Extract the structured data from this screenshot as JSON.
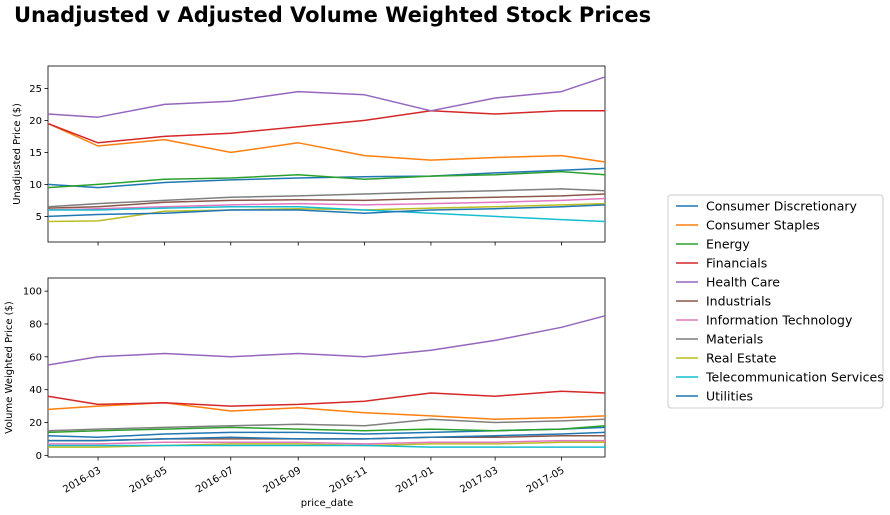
{
  "figure": {
    "suptitle": "Unadjusted v Adjusted Volume Weighted Stock Prices",
    "xlabel": "price_date"
  },
  "chart_data": [
    {
      "type": "line",
      "ylabel": "Unadjusted Price ($)",
      "xlim": [
        "2016-01-15",
        "2017-06-10"
      ],
      "ylim": [
        1,
        28.5
      ],
      "yticks": [
        5,
        10,
        15,
        20,
        25
      ],
      "x_tick_labels": [],
      "grid": false,
      "series": [
        {
          "name": "Consumer Discretionary",
          "color": "#1f77b4",
          "x": [
            "2016-01-15",
            "2016-03-01",
            "2016-05-01",
            "2016-07-01",
            "2016-09-01",
            "2016-11-01",
            "2017-01-01",
            "2017-03-01",
            "2017-05-01",
            "2017-06-10"
          ],
          "values": [
            10.0,
            9.5,
            10.3,
            10.7,
            11.0,
            11.2,
            11.3,
            11.8,
            12.2,
            12.5
          ]
        },
        {
          "name": "Consumer Staples",
          "color": "#ff7f0e",
          "x": [
            "2016-01-15",
            "2016-03-01",
            "2016-05-01",
            "2016-07-01",
            "2016-09-01",
            "2016-11-01",
            "2017-01-01",
            "2017-03-01",
            "2017-05-01",
            "2017-06-10"
          ],
          "values": [
            19.5,
            16.0,
            17.0,
            15.0,
            16.5,
            14.5,
            13.8,
            14.2,
            14.5,
            13.5
          ]
        },
        {
          "name": "Energy",
          "color": "#2ca02c",
          "x": [
            "2016-01-15",
            "2016-03-01",
            "2016-05-01",
            "2016-07-01",
            "2016-09-01",
            "2016-11-01",
            "2017-01-01",
            "2017-03-01",
            "2017-05-01",
            "2017-06-10"
          ],
          "values": [
            9.5,
            10.0,
            10.8,
            11.0,
            11.5,
            10.8,
            11.3,
            11.5,
            12.0,
            11.5
          ]
        },
        {
          "name": "Financials",
          "color": "#d62728",
          "x": [
            "2016-01-15",
            "2016-03-01",
            "2016-05-01",
            "2016-07-01",
            "2016-09-01",
            "2016-11-01",
            "2017-01-01",
            "2017-03-01",
            "2017-05-01",
            "2017-06-10"
          ],
          "values": [
            19.5,
            16.5,
            17.5,
            18.0,
            19.0,
            20.0,
            21.5,
            21.0,
            21.5,
            21.5
          ]
        },
        {
          "name": "Health Care",
          "color": "#9467bd",
          "x": [
            "2016-01-15",
            "2016-03-01",
            "2016-05-01",
            "2016-07-01",
            "2016-09-01",
            "2016-11-01",
            "2017-01-01",
            "2017-03-01",
            "2017-05-01",
            "2017-06-10"
          ],
          "values": [
            21.0,
            20.5,
            22.5,
            23.0,
            24.5,
            24.0,
            21.5,
            23.5,
            24.5,
            26.8
          ]
        },
        {
          "name": "Industrials",
          "color": "#8c564b",
          "x": [
            "2016-01-15",
            "2016-03-01",
            "2016-05-01",
            "2016-07-01",
            "2016-09-01",
            "2016-11-01",
            "2017-01-01",
            "2017-03-01",
            "2017-05-01",
            "2017-06-10"
          ],
          "values": [
            6.3,
            6.5,
            7.2,
            7.5,
            7.6,
            7.5,
            7.8,
            8.0,
            8.2,
            8.5
          ]
        },
        {
          "name": "Information Technology",
          "color": "#e377c2",
          "x": [
            "2016-01-15",
            "2016-03-01",
            "2016-05-01",
            "2016-07-01",
            "2016-09-01",
            "2016-11-01",
            "2017-01-01",
            "2017-03-01",
            "2017-05-01",
            "2017-06-10"
          ],
          "values": [
            6.0,
            6.2,
            6.5,
            6.8,
            7.0,
            6.8,
            7.0,
            7.2,
            7.5,
            7.8
          ]
        },
        {
          "name": "Materials",
          "color": "#7f7f7f",
          "x": [
            "2016-01-15",
            "2016-03-01",
            "2016-05-01",
            "2016-07-01",
            "2016-09-01",
            "2016-11-01",
            "2017-01-01",
            "2017-03-01",
            "2017-05-01",
            "2017-06-10"
          ],
          "values": [
            6.5,
            7.0,
            7.5,
            8.0,
            8.2,
            8.5,
            8.8,
            9.0,
            9.3,
            9.0
          ]
        },
        {
          "name": "Real Estate",
          "color": "#bcbd22",
          "x": [
            "2016-01-15",
            "2016-03-01",
            "2016-05-01",
            "2016-07-01",
            "2016-09-01",
            "2016-11-01",
            "2017-01-01",
            "2017-03-01",
            "2017-05-01",
            "2017-06-10"
          ],
          "values": [
            4.2,
            4.3,
            5.8,
            6.0,
            6.2,
            6.0,
            6.3,
            6.5,
            6.8,
            7.0
          ]
        },
        {
          "name": "Telecommunication Services",
          "color": "#17becf",
          "x": [
            "2016-01-15",
            "2016-03-01",
            "2016-05-01",
            "2016-07-01",
            "2016-09-01",
            "2016-11-01",
            "2017-01-01",
            "2017-03-01",
            "2017-05-01",
            "2017-06-10"
          ],
          "values": [
            6.0,
            6.0,
            6.3,
            6.5,
            6.5,
            6.0,
            5.5,
            5.0,
            4.5,
            4.2
          ]
        },
        {
          "name": "Utilities",
          "color": "#1f77b4",
          "x": [
            "2016-01-15",
            "2016-03-01",
            "2016-05-01",
            "2016-07-01",
            "2016-09-01",
            "2016-11-01",
            "2017-01-01",
            "2017-03-01",
            "2017-05-01",
            "2017-06-10"
          ],
          "values": [
            5.0,
            5.3,
            5.5,
            6.0,
            6.0,
            5.5,
            6.0,
            6.2,
            6.5,
            6.8
          ]
        }
      ]
    },
    {
      "type": "line",
      "ylabel": "Volume Weighted Price ($)",
      "xlim": [
        "2016-01-15",
        "2017-06-10"
      ],
      "ylim": [
        -1,
        108
      ],
      "yticks": [
        0,
        20,
        40,
        60,
        80,
        100
      ],
      "x_tick_labels": [
        {
          "x": "2016-03-01",
          "label": "2016-03"
        },
        {
          "x": "2016-05-01",
          "label": "2016-05"
        },
        {
          "x": "2016-07-01",
          "label": "2016-07"
        },
        {
          "x": "2016-09-01",
          "label": "2016-09"
        },
        {
          "x": "2016-11-01",
          "label": "2016-11"
        },
        {
          "x": "2017-01-01",
          "label": "2017-01"
        },
        {
          "x": "2017-03-01",
          "label": "2017-03"
        },
        {
          "x": "2017-05-01",
          "label": "2017-05"
        }
      ],
      "grid": false,
      "series": [
        {
          "name": "Consumer Discretionary",
          "color": "#1f77b4",
          "x": [
            "2016-01-15",
            "2016-03-01",
            "2016-05-01",
            "2016-07-01",
            "2016-09-01",
            "2016-11-01",
            "2017-01-01",
            "2017-03-01",
            "2017-05-01",
            "2017-06-10"
          ],
          "values": [
            12,
            11,
            13,
            14,
            14,
            13,
            14,
            15,
            16,
            17
          ]
        },
        {
          "name": "Consumer Staples",
          "color": "#ff7f0e",
          "x": [
            "2016-01-15",
            "2016-03-01",
            "2016-05-01",
            "2016-07-01",
            "2016-09-01",
            "2016-11-01",
            "2017-01-01",
            "2017-03-01",
            "2017-05-01",
            "2017-06-10"
          ],
          "values": [
            28,
            30,
            32,
            27,
            29,
            26,
            24,
            22,
            23,
            24
          ]
        },
        {
          "name": "Energy",
          "color": "#2ca02c",
          "x": [
            "2016-01-15",
            "2016-03-01",
            "2016-05-01",
            "2016-07-01",
            "2016-09-01",
            "2016-11-01",
            "2017-01-01",
            "2017-03-01",
            "2017-05-01",
            "2017-06-10"
          ],
          "values": [
            14,
            15,
            16,
            17,
            16,
            15,
            16,
            15,
            16,
            18
          ]
        },
        {
          "name": "Financials",
          "color": "#d62728",
          "x": [
            "2016-01-15",
            "2016-03-01",
            "2016-05-01",
            "2016-07-01",
            "2016-09-01",
            "2016-11-01",
            "2017-01-01",
            "2017-03-01",
            "2017-05-01",
            "2017-06-10"
          ],
          "values": [
            36,
            31,
            32,
            30,
            31,
            33,
            38,
            36,
            39,
            38
          ]
        },
        {
          "name": "Health Care",
          "color": "#9467bd",
          "x": [
            "2016-01-15",
            "2016-03-01",
            "2016-05-01",
            "2016-07-01",
            "2016-09-01",
            "2016-11-01",
            "2017-01-01",
            "2017-03-01",
            "2017-05-01",
            "2017-06-10"
          ],
          "values": [
            55,
            60,
            62,
            60,
            62,
            60,
            64,
            70,
            78,
            85
          ]
        },
        {
          "name": "Industrials",
          "color": "#8c564b",
          "x": [
            "2016-01-15",
            "2016-03-01",
            "2016-05-01",
            "2016-07-01",
            "2016-09-01",
            "2016-11-01",
            "2017-01-01",
            "2017-03-01",
            "2017-05-01",
            "2017-06-10"
          ],
          "values": [
            9,
            9,
            10,
            10,
            10,
            10,
            11,
            11,
            12,
            12
          ]
        },
        {
          "name": "Information Technology",
          "color": "#e377c2",
          "x": [
            "2016-01-15",
            "2016-03-01",
            "2016-05-01",
            "2016-07-01",
            "2016-09-01",
            "2016-11-01",
            "2017-01-01",
            "2017-03-01",
            "2017-05-01",
            "2017-06-10"
          ],
          "values": [
            7,
            7,
            8,
            8,
            8,
            7,
            8,
            8,
            9,
            9
          ]
        },
        {
          "name": "Materials",
          "color": "#7f7f7f",
          "x": [
            "2016-01-15",
            "2016-03-01",
            "2016-05-01",
            "2016-07-01",
            "2016-09-01",
            "2016-11-01",
            "2017-01-01",
            "2017-03-01",
            "2017-05-01",
            "2017-06-10"
          ],
          "values": [
            15,
            16,
            17,
            18,
            19,
            18,
            22,
            20,
            21,
            22
          ]
        },
        {
          "name": "Real Estate",
          "color": "#bcbd22",
          "x": [
            "2016-01-15",
            "2016-03-01",
            "2016-05-01",
            "2016-07-01",
            "2016-09-01",
            "2016-11-01",
            "2017-01-01",
            "2017-03-01",
            "2017-05-01",
            "2017-06-10"
          ],
          "values": [
            5,
            5,
            6,
            7,
            7,
            6,
            7,
            7,
            8,
            8
          ]
        },
        {
          "name": "Telecommunication Services",
          "color": "#17becf",
          "x": [
            "2016-01-15",
            "2016-03-01",
            "2016-05-01",
            "2016-07-01",
            "2016-09-01",
            "2016-11-01",
            "2017-01-01",
            "2017-03-01",
            "2017-05-01",
            "2017-06-10"
          ],
          "values": [
            6,
            6,
            6,
            6,
            6,
            6,
            5,
            5,
            5,
            5
          ]
        },
        {
          "name": "Utilities",
          "color": "#1f77b4",
          "x": [
            "2016-01-15",
            "2016-03-01",
            "2016-05-01",
            "2016-07-01",
            "2016-09-01",
            "2016-11-01",
            "2017-01-01",
            "2017-03-01",
            "2017-05-01",
            "2017-06-10"
          ],
          "values": [
            9,
            9,
            10,
            11,
            10,
            10,
            11,
            12,
            13,
            14
          ]
        }
      ]
    }
  ],
  "legend": {
    "location": "right-center",
    "entries": [
      "Consumer Discretionary",
      "Consumer Staples",
      "Energy",
      "Financials",
      "Health Care",
      "Industrials",
      "Information Technology",
      "Materials",
      "Real Estate",
      "Telecommunication Services",
      "Utilities"
    ]
  }
}
